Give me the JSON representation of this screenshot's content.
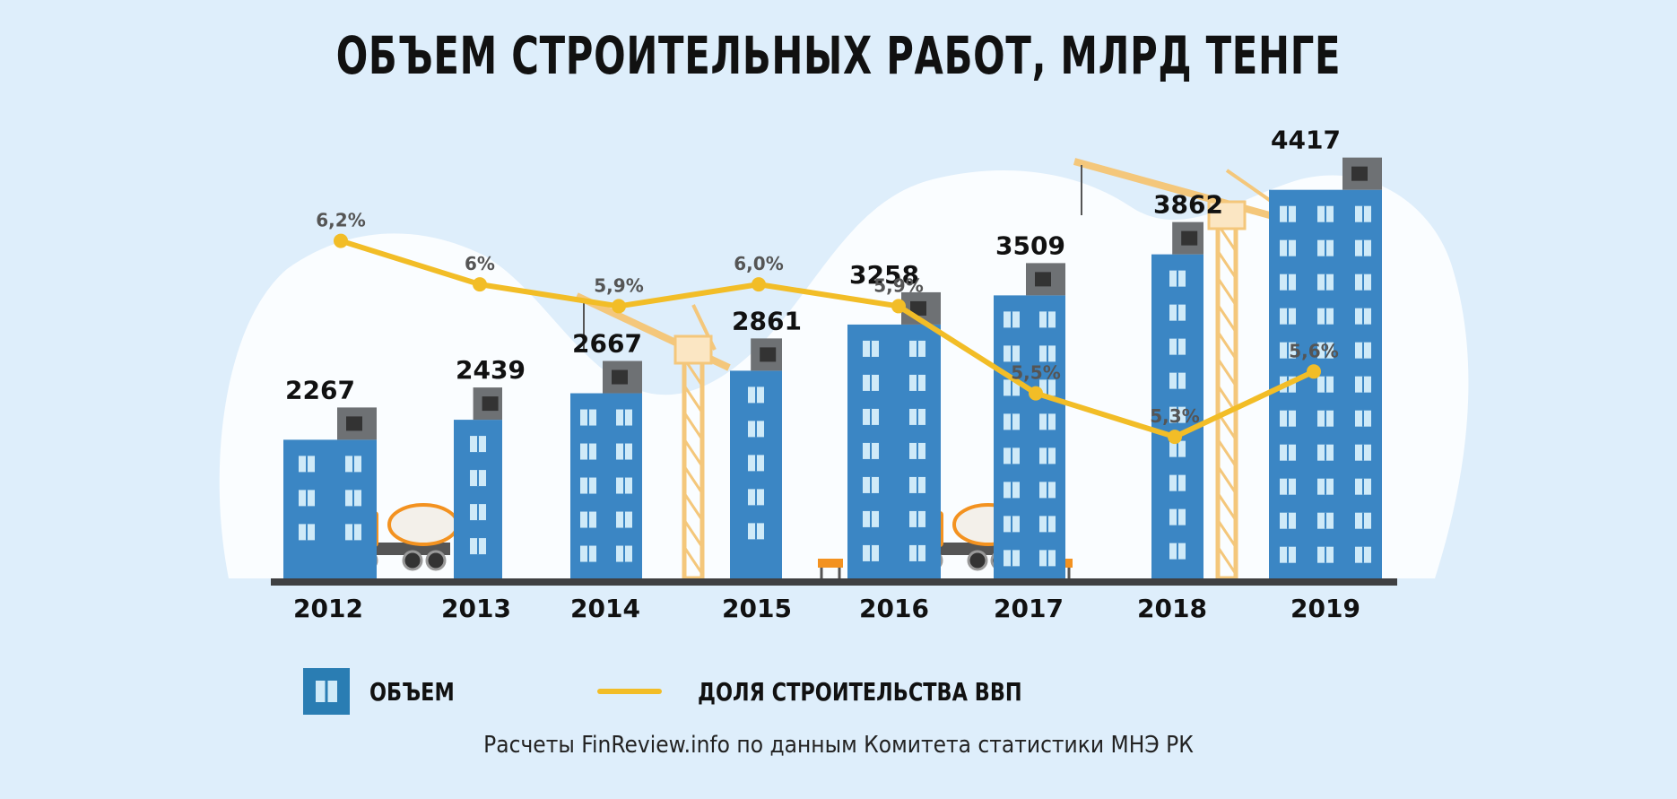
{
  "title": "ОБЪЕМ СТРОИТЕЛЬНЫХ РАБОТ, МЛРД ТЕНГЕ",
  "source": "Расчеты FinReview.info по данным Комитета статистики МНЭ РК",
  "colors": {
    "bar": "#3b86c4",
    "bar_alt": "#1aa2d3",
    "grey": "#6e7174",
    "line": "#f2bd27",
    "crane": "#f4c77b",
    "truck": "#f39220",
    "ground": "#3f4042",
    "background": "#deeefb",
    "cloud": "#ffffff"
  },
  "legend": {
    "volume_label": "ОБЪЕМ",
    "volume_icon": "building-window-icon",
    "share_label": "ДОЛЯ СТРОИТЕЛЬСТВА ВВП"
  },
  "chart_data": {
    "type": "bar",
    "categories": [
      "2012",
      "2013",
      "2014",
      "2015",
      "2016",
      "2017",
      "2018",
      "2019"
    ],
    "series": [
      {
        "name": "ОБЪЕМ",
        "type": "bar",
        "values": [
          2267,
          2439,
          2667,
          2861,
          3258,
          3509,
          3862,
          4417
        ],
        "labels": [
          "2267",
          "2439",
          "2667",
          "2861",
          "3258",
          "3509",
          "3862",
          "4417"
        ]
      },
      {
        "name": "ДОЛЯ СТРОИТЕЛЬСТВА ВВП",
        "type": "line",
        "values": [
          6.2,
          6.0,
          5.9,
          6.0,
          5.9,
          5.5,
          5.3,
          5.6
        ],
        "labels": [
          "6,2%",
          "6%",
          "5,9%",
          "6,0%",
          "5,9%",
          "5,5%",
          "5,3%",
          "5,6%"
        ]
      }
    ],
    "xlabel": "",
    "ylabel": "",
    "legend_position": "bottom",
    "grid": false
  }
}
